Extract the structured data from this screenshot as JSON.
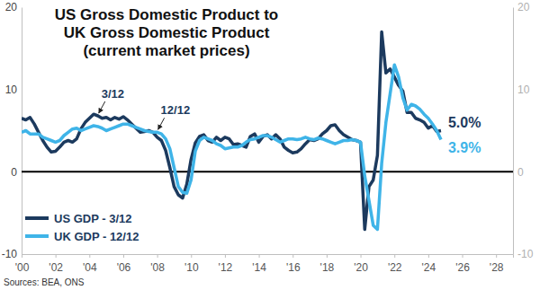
{
  "chart_data": {
    "type": "line",
    "title": [
      "US Gross Domestic Product to",
      "UK Gross Domestic Product",
      "(current market prices)"
    ],
    "source": "Sources: BEA, ONS",
    "x": [
      2000,
      2000.25,
      2000.5,
      2000.75,
      2001,
      2001.25,
      2001.5,
      2001.75,
      2002,
      2002.25,
      2002.5,
      2002.75,
      2003,
      2003.25,
      2003.5,
      2003.75,
      2004,
      2004.25,
      2004.5,
      2004.75,
      2005,
      2005.25,
      2005.5,
      2005.75,
      2006,
      2006.25,
      2006.5,
      2006.75,
      2007,
      2007.25,
      2007.5,
      2007.75,
      2008,
      2008.25,
      2008.5,
      2008.75,
      2009,
      2009.25,
      2009.5,
      2009.75,
      2010,
      2010.25,
      2010.5,
      2010.75,
      2011,
      2011.25,
      2011.5,
      2011.75,
      2012,
      2012.25,
      2012.5,
      2012.75,
      2013,
      2013.25,
      2013.5,
      2013.75,
      2014,
      2014.25,
      2014.5,
      2014.75,
      2015,
      2015.25,
      2015.5,
      2015.75,
      2016,
      2016.25,
      2016.5,
      2016.75,
      2017,
      2017.25,
      2017.5,
      2017.75,
      2018,
      2018.25,
      2018.5,
      2018.75,
      2019,
      2019.25,
      2019.5,
      2019.75,
      2020,
      2020.25,
      2020.5,
      2020.75,
      2021,
      2021.25,
      2021.5,
      2021.75,
      2022,
      2022.25,
      2022.5,
      2022.75,
      2023,
      2023.25,
      2023.5,
      2023.75,
      2024,
      2024.25,
      2024.5,
      2024.75
    ],
    "series": [
      {
        "name": "US GDP - 3/12",
        "color": "#1c3a5e",
        "end_label": "5.0%",
        "values": [
          6.5,
          6.3,
          6.6,
          5.8,
          4.8,
          3.8,
          3.0,
          2.4,
          2.5,
          3.0,
          3.6,
          3.8,
          3.6,
          4.0,
          5.2,
          6.0,
          6.5,
          7.0,
          6.8,
          6.5,
          6.6,
          6.3,
          6.6,
          6.4,
          6.7,
          6.3,
          5.8,
          5.3,
          4.8,
          4.9,
          5.0,
          4.8,
          4.2,
          3.8,
          2.6,
          0.5,
          -1.8,
          -2.8,
          -3.2,
          -1.5,
          1.5,
          3.5,
          4.3,
          4.5,
          3.8,
          3.6,
          4.2,
          3.8,
          4.2,
          4.0,
          3.3,
          3.4,
          3.2,
          3.0,
          4.3,
          4.6,
          3.6,
          4.3,
          4.5,
          4.0,
          4.5,
          4.0,
          3.0,
          2.6,
          2.3,
          2.4,
          2.8,
          3.4,
          3.9,
          3.8,
          4.0,
          4.6,
          5.0,
          5.6,
          5.7,
          5.0,
          4.5,
          4.2,
          3.9,
          3.8,
          3.6,
          -7.0,
          -1.8,
          -1.0,
          2.0,
          17.0,
          12.0,
          12.5,
          11.5,
          10.5,
          9.8,
          7.2,
          7.2,
          6.5,
          6.3,
          6.0,
          5.3,
          5.6,
          4.9,
          5.0
        ]
      },
      {
        "name": "UK GDP - 12/12",
        "color": "#3fb4e8",
        "end_label": "3.9%",
        "values": [
          4.8,
          5.0,
          4.6,
          4.6,
          4.6,
          4.2,
          4.0,
          3.8,
          3.6,
          3.8,
          4.4,
          4.8,
          5.2,
          5.3,
          5.0,
          5.2,
          5.4,
          5.6,
          5.5,
          5.3,
          5.0,
          5.2,
          5.4,
          5.6,
          5.8,
          5.8,
          5.6,
          5.4,
          5.2,
          5.0,
          4.9,
          4.8,
          4.8,
          4.6,
          4.0,
          2.8,
          0.5,
          -1.8,
          -2.5,
          -2.6,
          -1.0,
          2.5,
          3.8,
          4.2,
          4.0,
          3.8,
          3.4,
          3.2,
          2.8,
          2.9,
          3.0,
          3.0,
          3.2,
          3.6,
          3.9,
          4.0,
          4.2,
          4.4,
          4.4,
          4.2,
          3.9,
          3.6,
          3.8,
          4.0,
          4.0,
          3.9,
          4.0,
          4.2,
          4.0,
          3.9,
          4.1,
          4.0,
          3.8,
          3.6,
          3.4,
          3.6,
          3.8,
          3.8,
          3.9,
          3.8,
          3.6,
          -0.5,
          -3.5,
          -6.5,
          -7.0,
          1.0,
          6.0,
          9.5,
          13.0,
          11.5,
          9.0,
          7.5,
          8.2,
          8.0,
          7.6,
          7.0,
          6.5,
          5.8,
          5.0,
          3.9
        ]
      }
    ],
    "annotations": [
      {
        "text": "3/12",
        "x": 2004.5,
        "y": 6.8
      },
      {
        "text": "12/12",
        "x": 2008,
        "y": 4.8
      }
    ],
    "xlim": [
      2000,
      2029
    ],
    "xticks": [
      {
        "value": 2000,
        "label": "'00"
      },
      {
        "value": 2002,
        "label": "'02"
      },
      {
        "value": 2004,
        "label": "'04"
      },
      {
        "value": 2006,
        "label": "'06"
      },
      {
        "value": 2008,
        "label": "'08"
      },
      {
        "value": 2010,
        "label": "'10"
      },
      {
        "value": 2012,
        "label": "'12"
      },
      {
        "value": 2014,
        "label": "'14"
      },
      {
        "value": 2016,
        "label": "'16"
      },
      {
        "value": 2018,
        "label": "'18"
      },
      {
        "value": 2020,
        "label": "'20"
      },
      {
        "value": 2022,
        "label": "'22"
      },
      {
        "value": 2024,
        "label": "'24"
      },
      {
        "value": 2026,
        "label": "'26"
      },
      {
        "value": 2028,
        "label": "'28"
      }
    ],
    "ylim": [
      -10,
      20
    ],
    "yticks": [
      -10,
      0,
      10,
      20
    ],
    "grid": false,
    "legend": "lower left"
  }
}
